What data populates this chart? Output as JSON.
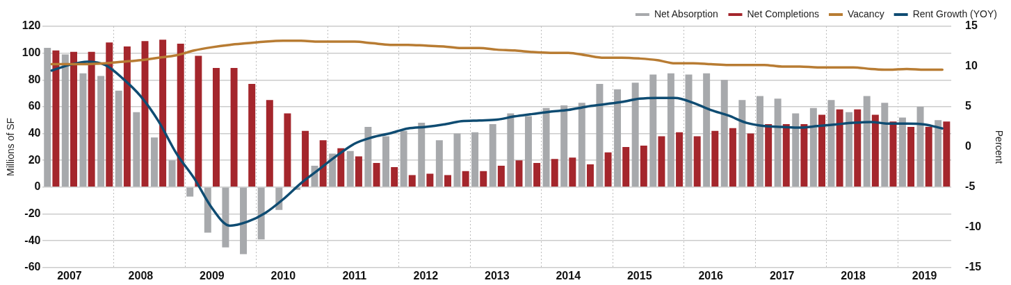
{
  "chart_data": {
    "type": "bar",
    "ylabel": "Millions of SF",
    "y2label": "Percent",
    "categories": [
      null,
      "2007",
      null,
      null,
      null,
      "2008",
      null,
      null,
      null,
      "2009",
      null,
      null,
      null,
      "2010",
      null,
      null,
      null,
      "2011",
      null,
      null,
      null,
      "2012",
      null,
      null,
      null,
      "2013",
      null,
      null,
      null,
      "2014",
      null,
      null,
      null,
      "2015",
      null,
      null,
      null,
      "2016",
      null,
      null,
      null,
      "2017",
      null,
      null,
      null,
      "2018",
      null,
      null,
      null,
      "2019",
      null
    ],
    "series": [
      {
        "name": "Net Absorption",
        "color": "#a7a9ac",
        "values": [
          104,
          99,
          85,
          83,
          72,
          56,
          37,
          20,
          -7,
          -34,
          -45,
          -50,
          -39,
          -17,
          -2,
          16,
          25,
          27,
          45,
          38,
          42,
          48,
          35,
          40,
          41,
          47,
          55,
          53,
          59,
          61,
          63,
          77,
          73,
          78,
          84,
          85,
          84,
          85,
          80,
          65,
          68,
          66,
          55,
          59,
          65,
          56,
          68,
          63,
          52,
          60,
          50
        ]
      },
      {
        "name": "Net Completions",
        "color": "#a4262c",
        "values": [
          102,
          101,
          101,
          108,
          105,
          109,
          110,
          107,
          98,
          89,
          89,
          77,
          65,
          55,
          42,
          35,
          29,
          23,
          18,
          15,
          9,
          10,
          9,
          12,
          12,
          16,
          20,
          18,
          21,
          22,
          17,
          26,
          30,
          31,
          38,
          41,
          38,
          42,
          44,
          40,
          47,
          47,
          47,
          54,
          58,
          58,
          54,
          49,
          45,
          45,
          49
        ]
      },
      {
        "name": "Vacancy",
        "type": "line",
        "axis": "y2",
        "color": "#b87c33",
        "values": [
          10.3,
          10.3,
          10.3,
          10.4,
          10.6,
          10.8,
          11.1,
          11.4,
          12.0,
          12.4,
          12.7,
          12.9,
          13.1,
          13.2,
          13.2,
          13.1,
          13.1,
          13.1,
          12.9,
          12.7,
          12.7,
          12.6,
          12.5,
          12.3,
          12.3,
          12.1,
          12.0,
          11.8,
          11.7,
          11.7,
          11.4,
          11.1,
          11.1,
          11.0,
          10.8,
          10.4,
          10.4,
          10.3,
          10.2,
          10.2,
          10.2,
          10.0,
          10.0,
          9.9,
          9.9,
          9.9,
          9.7,
          9.6,
          9.7,
          9.6,
          9.6
        ]
      },
      {
        "name": "Rent Growth (YOY)",
        "type": "line",
        "axis": "y2",
        "color": "#0f4c72",
        "values": [
          9.5,
          10.2,
          10.6,
          10.2,
          8.5,
          6.3,
          3.2,
          -0.8,
          -3.9,
          -7.6,
          -9.8,
          -9.3,
          -8.2,
          -6.5,
          -4.5,
          -2.8,
          -1.1,
          0.4,
          1.2,
          1.7,
          2.3,
          2.5,
          2.8,
          3.2,
          3.3,
          3.4,
          3.8,
          4.1,
          4.4,
          4.6,
          5.0,
          5.3,
          5.6,
          6.0,
          6.1,
          6.1,
          5.5,
          4.6,
          3.9,
          3.0,
          2.6,
          2.5,
          2.4,
          2.6,
          2.8,
          3.0,
          3.1,
          2.9,
          2.9,
          2.8,
          2.3
        ]
      }
    ],
    "ylim": [
      -60,
      120
    ],
    "yticks": [
      -60,
      -40,
      -20,
      0,
      20,
      40,
      60,
      80,
      100,
      120
    ],
    "y2lim": [
      -15,
      15
    ],
    "y2ticks": [
      -15,
      -10,
      -5,
      0,
      5,
      10,
      15
    ],
    "grid": true,
    "legend": "top right",
    "marker": "none",
    "line_style": "solid"
  }
}
